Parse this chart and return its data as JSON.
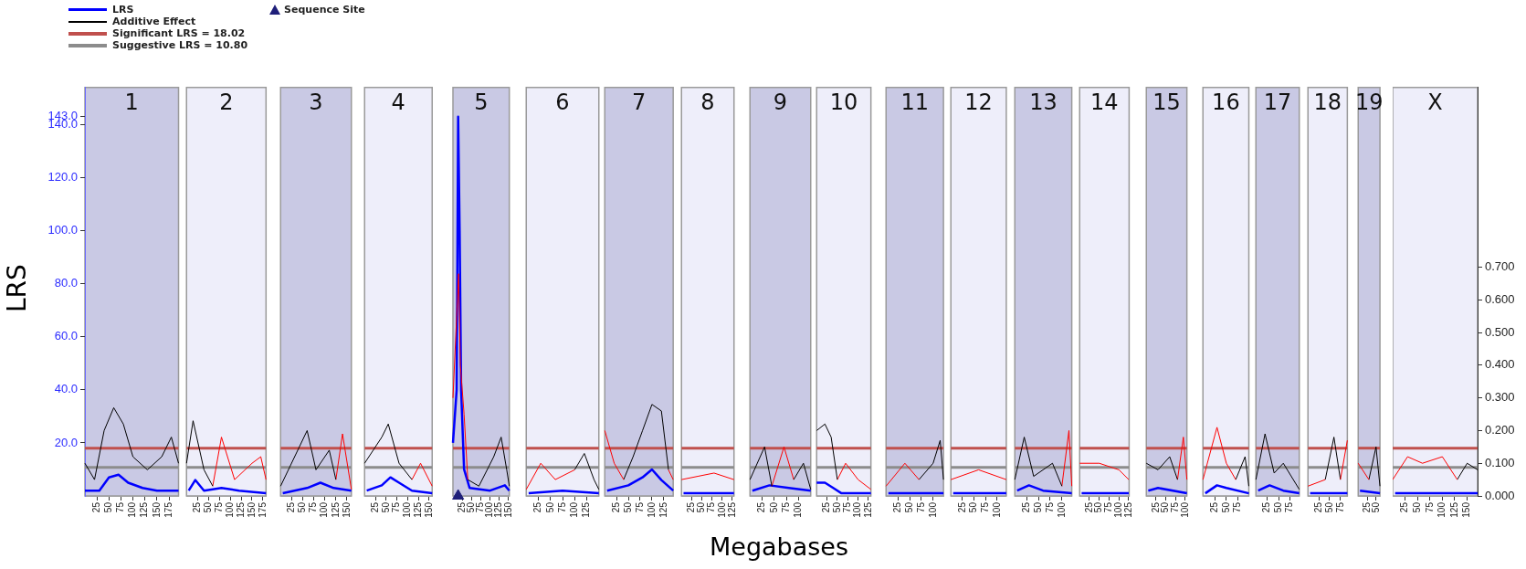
{
  "chart_data": [
    {
      "type": "line",
      "title": "1",
      "ylabel": "LRS",
      "legend": "top",
      "tick_labels": "xy",
      "xlim": [
        0,
        195
      ],
      "xticks": [
        25,
        50,
        75,
        100,
        125,
        150,
        175
      ],
      "ylim": [
        0,
        154
      ],
      "yticks": [
        {
          "value": 20,
          "label": "20.0"
        },
        {
          "value": 40,
          "label": "40.0"
        },
        {
          "value": 60,
          "label": "60.0"
        },
        {
          "value": 80,
          "label": "80.0"
        },
        {
          "value": 100,
          "label": "100.0"
        },
        {
          "value": 120,
          "label": "120.0"
        },
        {
          "value": 140,
          "label": "140.0"
        },
        {
          "value": 143,
          "label": "143.0"
        }
      ],
      "y2lim": [
        0,
        1.25
      ],
      "ref_lines": [
        {
          "axis": "y",
          "value": 18.02,
          "label": "Significant LRS = 18.02",
          "color": "#c0504d"
        },
        {
          "axis": "y",
          "value": 10.8,
          "label": "Suggestive LRS = 10.80",
          "color": "#8c8c8c"
        }
      ],
      "series": [
        {
          "name": "LRS",
          "color": "#0000ff",
          "x": [
            0,
            30,
            50,
            70,
            90,
            120,
            150,
            195
          ],
          "values": [
            2,
            2,
            7,
            8,
            5,
            3,
            2,
            2
          ]
        },
        {
          "name": "Additive Effect",
          "color": "#000000",
          "axis": "y2",
          "x": [
            0,
            20,
            40,
            60,
            80,
            100,
            130,
            160,
            180,
            195
          ],
          "values": [
            0.1,
            0.05,
            0.2,
            0.27,
            0.22,
            0.12,
            0.08,
            0.12,
            0.18,
            0.1
          ]
        }
      ]
    },
    {
      "type": "line",
      "title": "2",
      "tick_labels": "x",
      "xlim": [
        0,
        182
      ],
      "xticks": [
        25,
        50,
        75,
        100,
        125,
        150,
        175
      ],
      "ylim": [
        0,
        154
      ],
      "y2lim": [
        0,
        1.25
      ],
      "ref_lines": [
        {
          "axis": "y",
          "value": 18.02,
          "color": "#c0504d"
        },
        {
          "axis": "y",
          "value": 10.8,
          "color": "#8c8c8c"
        }
      ],
      "series": [
        {
          "color": "#0000ff",
          "x": [
            5,
            20,
            40,
            80,
            120,
            182
          ],
          "values": [
            2,
            6,
            2,
            3,
            2,
            1
          ]
        },
        {
          "color": "#000000",
          "axis": "y2",
          "x": [
            0,
            15,
            40,
            60
          ],
          "values": [
            0.1,
            0.23,
            0.08,
            0.03
          ]
        },
        {
          "color": "#ff0000",
          "axis": "y2",
          "x": [
            60,
            80,
            110,
            150,
            170,
            182
          ],
          "values": [
            0.03,
            0.18,
            0.05,
            0.1,
            0.12,
            0.05
          ]
        }
      ]
    },
    {
      "type": "line",
      "title": "3",
      "tick_labels": "x",
      "xlim": [
        0,
        160
      ],
      "xticks": [
        25,
        50,
        75,
        100,
        125,
        150
      ],
      "ylim": [
        0,
        154
      ],
      "y2lim": [
        0,
        1.25
      ],
      "ref_lines": [
        {
          "axis": "y",
          "value": 18.02,
          "color": "#c0504d"
        },
        {
          "axis": "y",
          "value": 10.8,
          "color": "#8c8c8c"
        }
      ],
      "series": [
        {
          "color": "#0000ff",
          "x": [
            5,
            60,
            90,
            120,
            160
          ],
          "values": [
            1,
            3,
            5,
            3,
            2
          ]
        },
        {
          "color": "#000000",
          "axis": "y2",
          "x": [
            0,
            60,
            80,
            110,
            125
          ],
          "values": [
            0.03,
            0.2,
            0.08,
            0.14,
            0.05
          ]
        },
        {
          "color": "#ff0000",
          "axis": "y2",
          "x": [
            125,
            140,
            160
          ],
          "values": [
            0.05,
            0.19,
            0.02
          ]
        }
      ]
    },
    {
      "type": "line",
      "title": "4",
      "tick_labels": "x",
      "xlim": [
        0,
        157
      ],
      "xticks": [
        25,
        50,
        75,
        100,
        125,
        150
      ],
      "ylim": [
        0,
        154
      ],
      "y2lim": [
        0,
        1.25
      ],
      "ref_lines": [
        {
          "axis": "y",
          "value": 18.02,
          "color": "#c0504d"
        },
        {
          "axis": "y",
          "value": 10.8,
          "color": "#8c8c8c"
        }
      ],
      "series": [
        {
          "color": "#0000ff",
          "x": [
            5,
            40,
            60,
            80,
            110,
            157
          ],
          "values": [
            2,
            4,
            7,
            5,
            2,
            1
          ]
        },
        {
          "color": "#000000",
          "axis": "y2",
          "x": [
            0,
            40,
            55,
            80,
            110
          ],
          "values": [
            0.1,
            0.18,
            0.22,
            0.1,
            0.05
          ]
        },
        {
          "color": "#ff0000",
          "axis": "y2",
          "x": [
            110,
            130,
            157
          ],
          "values": [
            0.05,
            0.1,
            0.03
          ]
        }
      ]
    },
    {
      "type": "line",
      "title": "5",
      "tick_labels": "x",
      "xlim": [
        0,
        152
      ],
      "xticks": [
        25,
        50,
        75,
        100,
        125,
        150
      ],
      "ylim": [
        0,
        154
      ],
      "y2lim": [
        0,
        1.25
      ],
      "ref_lines": [
        {
          "axis": "y",
          "value": 18.02,
          "color": "#c0504d"
        },
        {
          "axis": "y",
          "value": 10.8,
          "color": "#8c8c8c"
        }
      ],
      "series": [
        {
          "color": "#0000ff",
          "x": [
            0,
            10,
            14,
            18,
            22,
            30,
            45,
            100,
            140,
            152
          ],
          "values": [
            20,
            40,
            143,
            100,
            40,
            10,
            3,
            2,
            4,
            2
          ]
        },
        {
          "color": "#ff0000",
          "axis": "y2",
          "x": [
            0,
            10,
            15,
            20,
            30,
            40
          ],
          "values": [
            0.3,
            0.55,
            0.68,
            0.4,
            0.25,
            0.05
          ]
        },
        {
          "color": "#000000",
          "axis": "y2",
          "x": [
            40,
            70,
            110,
            130,
            145,
            152
          ],
          "values": [
            0.05,
            0.03,
            0.12,
            0.18,
            0.08,
            0.03
          ]
        },
        {
          "type": "scatter",
          "name": "Sequence Site",
          "color": "#1f1f7a",
          "marker": "triangle",
          "x": [
            14
          ],
          "values": [
            0
          ]
        }
      ]
    },
    {
      "type": "line",
      "title": "6",
      "tick_labels": "x",
      "xlim": [
        0,
        150
      ],
      "xticks": [
        25,
        50,
        75,
        100,
        125
      ],
      "ylim": [
        0,
        154
      ],
      "y2lim": [
        0,
        1.25
      ],
      "ref_lines": [
        {
          "axis": "y",
          "value": 18.02,
          "color": "#c0504d"
        },
        {
          "axis": "y",
          "value": 10.8,
          "color": "#8c8c8c"
        }
      ],
      "series": [
        {
          "color": "#0000ff",
          "x": [
            5,
            75,
            150
          ],
          "values": [
            1,
            2,
            1
          ]
        },
        {
          "color": "#ff0000",
          "axis": "y2",
          "x": [
            0,
            30,
            60,
            100
          ],
          "values": [
            0.02,
            0.1,
            0.05,
            0.08
          ]
        },
        {
          "color": "#000000",
          "axis": "y2",
          "x": [
            100,
            120,
            140,
            150
          ],
          "values": [
            0.08,
            0.13,
            0.05,
            0.02
          ]
        }
      ]
    },
    {
      "type": "line",
      "title": "7",
      "tick_labels": "x",
      "xlim": [
        0,
        145
      ],
      "xticks": [
        25,
        50,
        75,
        100,
        125
      ],
      "ylim": [
        0,
        154
      ],
      "y2lim": [
        0,
        1.25
      ],
      "ref_lines": [
        {
          "axis": "y",
          "value": 18.02,
          "color": "#c0504d"
        },
        {
          "axis": "y",
          "value": 10.8,
          "color": "#8c8c8c"
        }
      ],
      "series": [
        {
          "color": "#0000ff",
          "x": [
            5,
            50,
            80,
            100,
            120,
            145
          ],
          "values": [
            2,
            4,
            7,
            10,
            6,
            2
          ]
        },
        {
          "color": "#ff0000",
          "axis": "y2",
          "x": [
            0,
            20,
            40,
            41,
            135,
            145
          ],
          "values": [
            0.2,
            0.1,
            0.05,
            null,
            0.08,
            0.05
          ]
        },
        {
          "color": "#000000",
          "axis": "y2",
          "x": [
            40,
            60,
            80,
            100,
            120,
            135
          ],
          "values": [
            0.05,
            0.12,
            0.2,
            0.28,
            0.26,
            0.08
          ]
        }
      ]
    },
    {
      "type": "line",
      "title": "8",
      "tick_labels": "x",
      "xlim": [
        0,
        129
      ],
      "xticks": [
        25,
        50,
        75,
        100,
        125
      ],
      "ylim": [
        0,
        154
      ],
      "y2lim": [
        0,
        1.25
      ],
      "ref_lines": [
        {
          "axis": "y",
          "value": 18.02,
          "color": "#c0504d"
        },
        {
          "axis": "y",
          "value": 10.8,
          "color": "#8c8c8c"
        }
      ],
      "series": [
        {
          "color": "#0000ff",
          "x": [
            5,
            129
          ],
          "values": [
            1,
            1
          ]
        },
        {
          "color": "#ff0000",
          "axis": "y2",
          "x": [
            0,
            40,
            80,
            129
          ],
          "values": [
            0.05,
            0.06,
            0.07,
            0.05
          ]
        }
      ]
    },
    {
      "type": "line",
      "title": "9",
      "xlabel": "Megabases",
      "tick_labels": "x",
      "xlim": [
        0,
        125
      ],
      "xticks": [
        25,
        50,
        75,
        100
      ],
      "ylim": [
        0,
        154
      ],
      "y2lim": [
        0,
        1.25
      ],
      "ref_lines": [
        {
          "axis": "y",
          "value": 18.02,
          "color": "#c0504d"
        },
        {
          "axis": "y",
          "value": 10.8,
          "color": "#8c8c8c"
        }
      ],
      "series": [
        {
          "color": "#0000ff",
          "x": [
            5,
            40,
            80,
            125
          ],
          "values": [
            2,
            4,
            3,
            2
          ]
        },
        {
          "color": "#000000",
          "axis": "y2",
          "x": [
            0,
            30,
            45,
            46,
            90,
            110,
            125
          ],
          "values": [
            0.05,
            0.15,
            0.03,
            null,
            0.05,
            0.1,
            0.02
          ]
        },
        {
          "color": "#ff0000",
          "axis": "y2",
          "x": [
            45,
            70,
            90
          ],
          "values": [
            0.03,
            0.15,
            0.05
          ]
        }
      ]
    },
    {
      "type": "line",
      "title": "10",
      "tick_labels": "x",
      "xlim": [
        0,
        131
      ],
      "xticks": [
        25,
        50,
        75,
        100,
        125
      ],
      "ylim": [
        0,
        154
      ],
      "y2lim": [
        0,
        1.25
      ],
      "ref_lines": [
        {
          "axis": "y",
          "value": 18.02,
          "color": "#c0504d"
        },
        {
          "axis": "y",
          "value": 10.8,
          "color": "#8c8c8c"
        }
      ],
      "series": [
        {
          "color": "#0000ff",
          "x": [
            0,
            20,
            40,
            60,
            131
          ],
          "values": [
            5,
            5,
            3,
            1,
            1
          ]
        },
        {
          "color": "#000000",
          "axis": "y2",
          "x": [
            0,
            20,
            35,
            50
          ],
          "values": [
            0.2,
            0.22,
            0.18,
            0.05
          ]
        },
        {
          "color": "#ff0000",
          "axis": "y2",
          "x": [
            50,
            70,
            100,
            131
          ],
          "values": [
            0.05,
            0.1,
            0.05,
            0.02
          ]
        }
      ]
    },
    {
      "type": "line",
      "title": "11",
      "tick_labels": "x",
      "xlim": [
        0,
        122
      ],
      "xticks": [
        25,
        50,
        75,
        100
      ],
      "ylim": [
        0,
        154
      ],
      "y2lim": [
        0,
        1.25
      ],
      "ref_lines": [
        {
          "axis": "y",
          "value": 18.02,
          "color": "#c0504d"
        },
        {
          "axis": "y",
          "value": 10.8,
          "color": "#8c8c8c"
        }
      ],
      "series": [
        {
          "color": "#0000ff",
          "x": [
            5,
            122
          ],
          "values": [
            1,
            1
          ]
        },
        {
          "color": "#ff0000",
          "axis": "y2",
          "x": [
            0,
            40,
            70
          ],
          "values": [
            0.03,
            0.1,
            0.05
          ]
        },
        {
          "color": "#000000",
          "axis": "y2",
          "x": [
            70,
            100,
            115,
            122
          ],
          "values": [
            0.05,
            0.1,
            0.17,
            0.05
          ]
        }
      ]
    },
    {
      "type": "line",
      "title": "12",
      "tick_labels": "x",
      "xlim": [
        0,
        120
      ],
      "xticks": [
        25,
        50,
        75,
        100
      ],
      "ylim": [
        0,
        154
      ],
      "y2lim": [
        0,
        1.25
      ],
      "ref_lines": [
        {
          "axis": "y",
          "value": 18.02,
          "color": "#c0504d"
        },
        {
          "axis": "y",
          "value": 10.8,
          "color": "#8c8c8c"
        }
      ],
      "series": [
        {
          "color": "#0000ff",
          "x": [
            5,
            120
          ],
          "values": [
            1,
            1
          ]
        },
        {
          "color": "#ff0000",
          "axis": "y2",
          "x": [
            0,
            60,
            120
          ],
          "values": [
            0.05,
            0.08,
            0.05
          ]
        }
      ]
    },
    {
      "type": "line",
      "title": "13",
      "tick_labels": "x",
      "xlim": [
        0,
        121
      ],
      "xticks": [
        25,
        50,
        75,
        100
      ],
      "ylim": [
        0,
        154
      ],
      "y2lim": [
        0,
        1.25
      ],
      "ref_lines": [
        {
          "axis": "y",
          "value": 18.02,
          "color": "#c0504d"
        },
        {
          "axis": "y",
          "value": 10.8,
          "color": "#8c8c8c"
        }
      ],
      "series": [
        {
          "color": "#0000ff",
          "x": [
            5,
            30,
            60,
            121
          ],
          "values": [
            2,
            4,
            2,
            1
          ]
        },
        {
          "color": "#000000",
          "axis": "y2",
          "x": [
            0,
            20,
            40,
            80,
            100
          ],
          "values": [
            0.05,
            0.18,
            0.06,
            0.1,
            0.03
          ]
        },
        {
          "color": "#ff0000",
          "axis": "y2",
          "x": [
            100,
            115,
            121
          ],
          "values": [
            0.03,
            0.2,
            0.03
          ]
        }
      ]
    },
    {
      "type": "line",
      "title": "14",
      "tick_labels": "x",
      "xlim": [
        0,
        126
      ],
      "xticks": [
        25,
        50,
        75,
        100,
        125
      ],
      "ylim": [
        0,
        154
      ],
      "y2lim": [
        0,
        1.25
      ],
      "ref_lines": [
        {
          "axis": "y",
          "value": 18.02,
          "color": "#c0504d"
        },
        {
          "axis": "y",
          "value": 10.8,
          "color": "#8c8c8c"
        }
      ],
      "series": [
        {
          "color": "#0000ff",
          "x": [
            5,
            125
          ],
          "values": [
            1,
            1
          ]
        },
        {
          "color": "#ff0000",
          "axis": "y2",
          "x": [
            0,
            50,
            100,
            125
          ],
          "values": [
            0.1,
            0.1,
            0.08,
            0.05
          ]
        }
      ]
    },
    {
      "type": "line",
      "title": "15",
      "tick_labels": "x",
      "xlim": [
        0,
        104
      ],
      "xticks": [
        25,
        50,
        75,
        100
      ],
      "ylim": [
        0,
        154
      ],
      "y2lim": [
        0,
        1.25
      ],
      "ref_lines": [
        {
          "axis": "y",
          "value": 18.02,
          "color": "#c0504d"
        },
        {
          "axis": "y",
          "value": 10.8,
          "color": "#8c8c8c"
        }
      ],
      "series": [
        {
          "color": "#0000ff",
          "x": [
            5,
            30,
            104
          ],
          "values": [
            2,
            3,
            1
          ]
        },
        {
          "color": "#000000",
          "axis": "y2",
          "x": [
            0,
            30,
            60,
            80
          ],
          "values": [
            0.1,
            0.08,
            0.12,
            0.05
          ]
        },
        {
          "color": "#ff0000",
          "axis": "y2",
          "x": [
            80,
            95,
            104
          ],
          "values": [
            0.05,
            0.18,
            0.05
          ]
        }
      ]
    },
    {
      "type": "line",
      "title": "16",
      "tick_labels": "x",
      "xlim": [
        0,
        98
      ],
      "xticks": [
        25,
        50,
        75
      ],
      "ylim": [
        0,
        154
      ],
      "y2lim": [
        0,
        1.25
      ],
      "ref_lines": [
        {
          "axis": "y",
          "value": 18.02,
          "color": "#c0504d"
        },
        {
          "axis": "y",
          "value": 10.8,
          "color": "#8c8c8c"
        }
      ],
      "series": [
        {
          "color": "#0000ff",
          "x": [
            5,
            30,
            50,
            98
          ],
          "values": [
            1,
            4,
            3,
            1
          ]
        },
        {
          "color": "#ff0000",
          "axis": "y2",
          "x": [
            0,
            30,
            50,
            70
          ],
          "values": [
            0.05,
            0.21,
            0.1,
            0.05
          ]
        },
        {
          "color": "#000000",
          "axis": "y2",
          "x": [
            70,
            90,
            98
          ],
          "values": [
            0.05,
            0.12,
            0.03
          ]
        }
      ]
    },
    {
      "type": "line",
      "title": "17",
      "tick_labels": "x",
      "xlim": [
        0,
        95
      ],
      "xticks": [
        25,
        50,
        75
      ],
      "ylim": [
        0,
        154
      ],
      "y2lim": [
        0,
        1.25
      ],
      "ref_lines": [
        {
          "axis": "y",
          "value": 18.02,
          "color": "#c0504d"
        },
        {
          "axis": "y",
          "value": 10.8,
          "color": "#8c8c8c"
        }
      ],
      "series": [
        {
          "color": "#0000ff",
          "x": [
            5,
            30,
            60,
            95
          ],
          "values": [
            2,
            4,
            2,
            1
          ]
        },
        {
          "color": "#000000",
          "axis": "y2",
          "x": [
            0,
            20,
            40,
            60,
            95
          ],
          "values": [
            0.05,
            0.19,
            0.07,
            0.1,
            0.02
          ]
        }
      ]
    },
    {
      "type": "line",
      "title": "18",
      "tick_labels": "x",
      "xlim": [
        0,
        91
      ],
      "xticks": [
        25,
        50,
        75
      ],
      "ylim": [
        0,
        154
      ],
      "y2lim": [
        0,
        1.25
      ],
      "ref_lines": [
        {
          "axis": "y",
          "value": 18.02,
          "color": "#c0504d"
        },
        {
          "axis": "y",
          "value": 10.8,
          "color": "#8c8c8c"
        }
      ],
      "series": [
        {
          "color": "#0000ff",
          "x": [
            5,
            91
          ],
          "values": [
            1,
            1
          ]
        },
        {
          "color": "#ff0000",
          "axis": "y2",
          "x": [
            0,
            40,
            41,
            75,
            91
          ],
          "values": [
            0.03,
            0.05,
            null,
            0.05,
            0.17
          ]
        },
        {
          "color": "#000000",
          "axis": "y2",
          "x": [
            40,
            60,
            75
          ],
          "values": [
            0.05,
            0.18,
            0.05
          ]
        }
      ]
    },
    {
      "type": "line",
      "title": "19",
      "tick_labels": "x",
      "xlim": [
        0,
        61
      ],
      "xticks": [
        25,
        50
      ],
      "ylim": [
        0,
        154
      ],
      "y2lim": [
        0,
        1.25
      ],
      "ref_lines": [
        {
          "axis": "y",
          "value": 18.02,
          "color": "#c0504d"
        },
        {
          "axis": "y",
          "value": 10.8,
          "color": "#8c8c8c"
        }
      ],
      "series": [
        {
          "color": "#0000ff",
          "x": [
            5,
            61
          ],
          "values": [
            2,
            1
          ]
        },
        {
          "color": "#ff0000",
          "axis": "y2",
          "x": [
            0,
            30
          ],
          "values": [
            0.1,
            0.05
          ]
        },
        {
          "color": "#000000",
          "axis": "y2",
          "x": [
            30,
            50,
            61
          ],
          "values": [
            0.05,
            0.15,
            0.03
          ]
        }
      ]
    },
    {
      "type": "line",
      "title": "X",
      "tick_labels": "xy2",
      "xlim": [
        0,
        171
      ],
      "xticks": [
        25,
        50,
        75,
        100,
        125,
        150
      ],
      "ylim": [
        0,
        154
      ],
      "y2lim": [
        0,
        1.25
      ],
      "y2ticks": [
        {
          "value": 0,
          "label": "0.000"
        },
        {
          "value": 0.1,
          "label": "0.100"
        },
        {
          "value": 0.2,
          "label": "0.200"
        },
        {
          "value": 0.3,
          "label": "0.300"
        },
        {
          "value": 0.4,
          "label": "0.400"
        },
        {
          "value": 0.5,
          "label": "0.500"
        },
        {
          "value": 0.6,
          "label": "0.600"
        },
        {
          "value": 0.7,
          "label": "0.700"
        }
      ],
      "ref_lines": [
        {
          "axis": "y",
          "value": 18.02,
          "color": "#c0504d"
        },
        {
          "axis": "y",
          "value": 10.8,
          "color": "#8c8c8c"
        }
      ],
      "series": [
        {
          "color": "#0000ff",
          "x": [
            5,
            171
          ],
          "values": [
            1,
            1
          ]
        },
        {
          "color": "#ff0000",
          "axis": "y2",
          "x": [
            0,
            30,
            60,
            100,
            130
          ],
          "values": [
            0.05,
            0.12,
            0.1,
            0.12,
            0.05
          ]
        },
        {
          "color": "#000000",
          "axis": "y2",
          "x": [
            130,
            150,
            171
          ],
          "values": [
            0.05,
            0.1,
            0.08
          ]
        }
      ]
    }
  ]
}
